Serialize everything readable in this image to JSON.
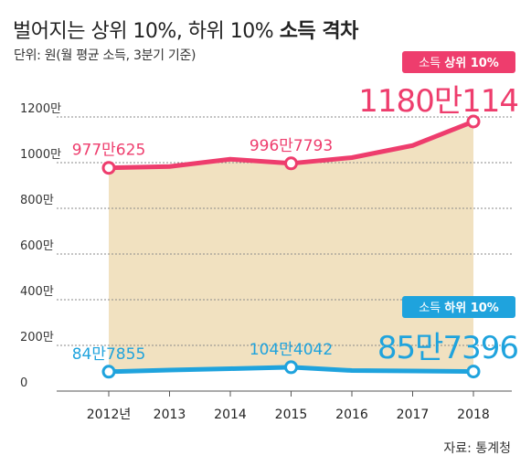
{
  "header": {
    "title_prefix": "벌어지는 상위 10%, 하위 10% ",
    "title_bold": "소득 격차",
    "unit": "단위: 원(월 평균 소득, 3분기 기준)"
  },
  "source": "자료: 통계청",
  "colors": {
    "top": "#ee3d6d",
    "bottom": "#1fa3dd",
    "fill": "#f1e1c0",
    "grid": "#8a8a8a"
  },
  "chart_data": {
    "type": "area",
    "categories": [
      "2012년",
      "2013",
      "2014",
      "2015",
      "2016",
      "2017",
      "2018"
    ],
    "yticks": [
      {
        "value": 0,
        "label": "0"
      },
      {
        "value": 200,
        "label": "200만"
      },
      {
        "value": 400,
        "label": "400만"
      },
      {
        "value": 600,
        "label": "600만"
      },
      {
        "value": 800,
        "label": "800만"
      },
      {
        "value": 1000,
        "label": "1000만"
      },
      {
        "value": 1200,
        "label": "1200만"
      }
    ],
    "ylim": [
      0,
      1200
    ],
    "grid": true,
    "series": [
      {
        "name": "소득 상위 10%",
        "badge_prefix": "소득 ",
        "badge_bold": "상위 10%",
        "values": [
          977.0625,
          983,
          1015,
          996.7793,
          1022,
          1075,
          1180.0114
        ],
        "markers": [
          0,
          3,
          6
        ],
        "labels": [
          {
            "index": 0,
            "text": "977만625"
          },
          {
            "index": 3,
            "text": "996만7793"
          }
        ],
        "highlight": {
          "index": 6,
          "text": "1180만114"
        }
      },
      {
        "name": "소득 하위 10%",
        "badge_prefix": "소득 ",
        "badge_bold": "하위 10%",
        "values": [
          84.7855,
          92,
          98,
          104.4042,
          90,
          88,
          85.7396
        ],
        "markers": [
          0,
          3,
          6
        ],
        "labels": [
          {
            "index": 0,
            "text": "84만7855"
          },
          {
            "index": 3,
            "text": "104만4042"
          }
        ],
        "highlight": {
          "index": 6,
          "text": "85만7396"
        }
      }
    ]
  }
}
